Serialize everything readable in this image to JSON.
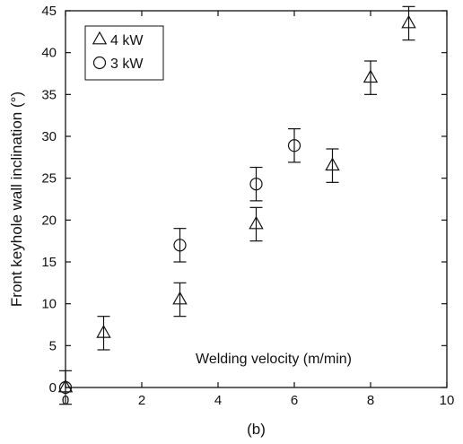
{
  "chart_data": {
    "type": "scatter",
    "title": "",
    "xlabel": "(b)",
    "ylabel": "Front keyhole wall inclination (°)",
    "annotation": "Welding velocity (m/min)",
    "xlim": [
      0,
      10
    ],
    "ylim": [
      0,
      45
    ],
    "x_ticks": [
      0,
      2,
      4,
      6,
      8,
      10
    ],
    "y_ticks": [
      0,
      5,
      10,
      15,
      20,
      25,
      30,
      35,
      40,
      45
    ],
    "grid": false,
    "legend_position": "top-left",
    "series": [
      {
        "name": "4 kW",
        "marker": "triangle",
        "points": [
          {
            "x": 0,
            "y": 0,
            "err": 2
          },
          {
            "x": 1,
            "y": 6.5,
            "err": 2
          },
          {
            "x": 3,
            "y": 10.5,
            "err": 2
          },
          {
            "x": 5,
            "y": 19.5,
            "err": 2
          },
          {
            "x": 7,
            "y": 26.5,
            "err": 2
          },
          {
            "x": 8,
            "y": 37,
            "err": 2
          },
          {
            "x": 9,
            "y": 43.5,
            "err": 2
          }
        ]
      },
      {
        "name": "3 kW",
        "marker": "circle",
        "points": [
          {
            "x": 0,
            "y": 0,
            "err": 0
          },
          {
            "x": 3,
            "y": 17,
            "err": 2
          },
          {
            "x": 5,
            "y": 24.3,
            "err": 2
          },
          {
            "x": 6,
            "y": 28.9,
            "err": 2
          }
        ]
      }
    ]
  }
}
